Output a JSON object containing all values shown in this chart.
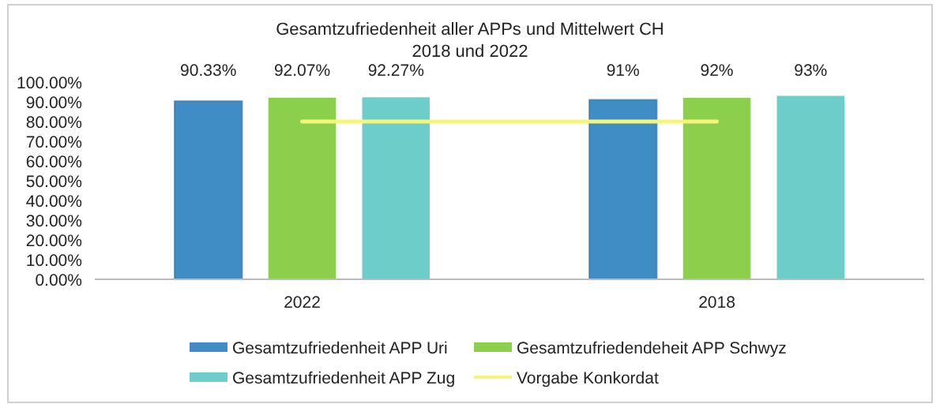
{
  "chart_data": {
    "type": "bar",
    "title": "Gesamtzufriedenheit aller APPs und Mittelwert CH",
    "subtitle": "2018 und 2022",
    "categories": [
      "2022",
      "2018"
    ],
    "series": [
      {
        "name": "Gesamtzufriedenheit APP Uri",
        "color": "#3f8dc4",
        "values": [
          90.33,
          91
        ],
        "value_labels": [
          "90.33%",
          "91%"
        ]
      },
      {
        "name": "Gesamtzufriedendeheit APP Schwyz",
        "color": "#8ccf4d",
        "values": [
          92.07,
          92
        ],
        "value_labels": [
          "92.07%",
          "92%"
        ]
      },
      {
        "name": "Gesamtzufriedenheit APP Zug",
        "color": "#6dcdc8",
        "values": [
          92.27,
          93
        ],
        "value_labels": [
          "92.27%",
          "93%"
        ]
      },
      {
        "name": "Vorgabe Konkordat",
        "type": "line",
        "color": "#f5f57a",
        "values": [
          80,
          80
        ]
      }
    ],
    "ylim": [
      0,
      100
    ],
    "yticks": [
      {
        "value": 0,
        "label": "0.00%"
      },
      {
        "value": 10,
        "label": "10.00%"
      },
      {
        "value": 20,
        "label": "20.00%"
      },
      {
        "value": 30,
        "label": "30.00%"
      },
      {
        "value": 40,
        "label": "40.00%"
      },
      {
        "value": 50,
        "label": "50.00%"
      },
      {
        "value": 60,
        "label": "60.00%"
      },
      {
        "value": 70,
        "label": "70.00%"
      },
      {
        "value": 80,
        "label": "80.00%"
      },
      {
        "value": 90,
        "label": "90.00%"
      },
      {
        "value": 100,
        "label": "100.00%"
      }
    ],
    "grid": false,
    "legend": "bottom"
  }
}
